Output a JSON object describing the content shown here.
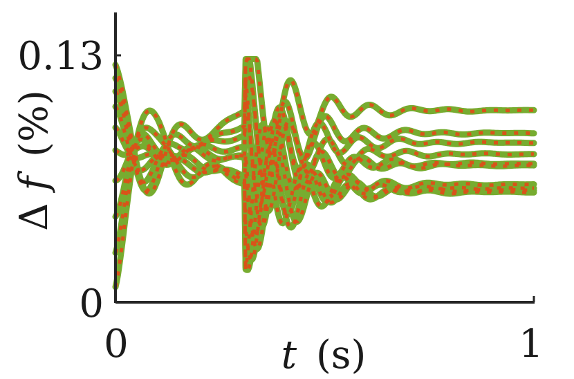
{
  "chart_data": {
    "type": "line",
    "xlabel_var": "t",
    "xlabel_unit": "(s)",
    "ylabel_delta": "Δ",
    "ylabel_var": "f",
    "ylabel_unit": "(%)",
    "x_ticks": [
      "0",
      "1"
    ],
    "y_ticks": [
      "0",
      "0.13"
    ],
    "xlim": [
      0,
      1
    ],
    "ylim": [
      0,
      0.13
    ],
    "grid": false,
    "colors": {
      "solid": "#77ac30",
      "dotted": "#d95319"
    },
    "series": [
      {
        "start": 0.125,
        "steady": 0.101,
        "phase1": 0.0,
        "phase2": 0.5
      },
      {
        "start": 0.118,
        "steady": 0.089,
        "phase1": 1.1,
        "phase2": 1.4
      },
      {
        "start": 0.111,
        "steady": 0.084,
        "phase1": 2.0,
        "phase2": 2.3
      },
      {
        "start": 0.103,
        "steady": 0.078,
        "phase1": 2.9,
        "phase2": 0.9
      },
      {
        "start": 0.092,
        "steady": 0.073,
        "phase1": 3.7,
        "phase2": 3.1
      },
      {
        "start": 0.08,
        "steady": 0.072,
        "phase1": 4.5,
        "phase2": 1.9
      },
      {
        "start": 0.064,
        "steady": 0.062,
        "phase1": 5.3,
        "phase2": 4.2
      },
      {
        "start": 0.045,
        "steady": 0.06,
        "phase1": 6.0,
        "phase2": 5.0
      },
      {
        "start": 0.026,
        "steady": 0.059,
        "phase1": 0.7,
        "phase2": 2.7
      },
      {
        "start": 0.008,
        "steady": 0.058,
        "phase1": 1.6,
        "phase2": 3.6
      }
    ]
  }
}
